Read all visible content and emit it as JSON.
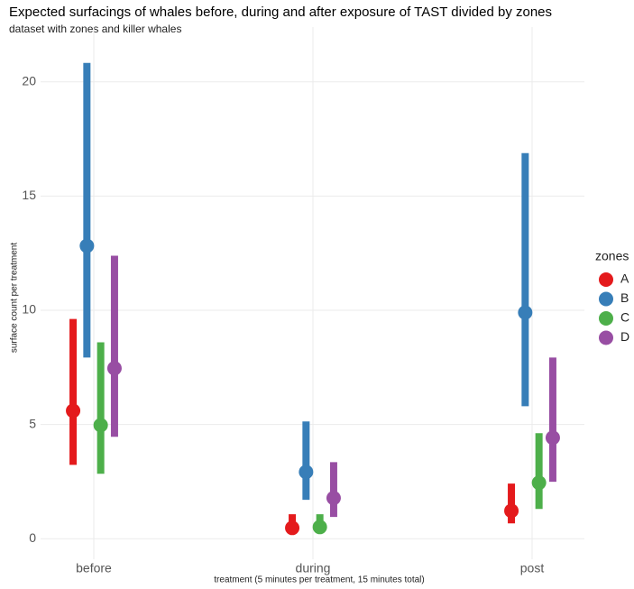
{
  "chart_data": {
    "type": "pointrange",
    "title": "Expected surfacings of whales before, during and after exposure of TAST divided by zones",
    "subtitle": "dataset with zones and killer whales",
    "x_label": "treatment (5 minutes per treatment, 15 minutes total)",
    "y_label": "surface count per treatment",
    "legend_title": "zones",
    "categories": [
      "before",
      "during",
      "post"
    ],
    "series": [
      {
        "name": "A",
        "color": "#e41a1c",
        "values": [
          5.6,
          0.47,
          1.22
        ],
        "lower": [
          3.23,
          0.28,
          0.67
        ],
        "upper": [
          9.62,
          1.07,
          2.41
        ]
      },
      {
        "name": "B",
        "color": "#377eb8",
        "values": [
          12.82,
          2.92,
          9.9
        ],
        "lower": [
          7.93,
          1.7,
          5.8
        ],
        "upper": [
          20.83,
          5.13,
          16.88
        ]
      },
      {
        "name": "C",
        "color": "#4daf4a",
        "values": [
          4.97,
          0.51,
          2.45
        ],
        "lower": [
          2.84,
          0.3,
          1.3
        ],
        "upper": [
          8.6,
          1.07,
          4.62
        ]
      },
      {
        "name": "D",
        "color": "#984ea3",
        "values": [
          7.46,
          1.78,
          4.42
        ],
        "lower": [
          4.46,
          0.95,
          2.49
        ],
        "upper": [
          12.39,
          3.35,
          7.93
        ]
      }
    ],
    "ylim": [
      -0.9,
      22.4
    ],
    "yticks": [
      0,
      5,
      10,
      15,
      20
    ],
    "grid": true
  }
}
